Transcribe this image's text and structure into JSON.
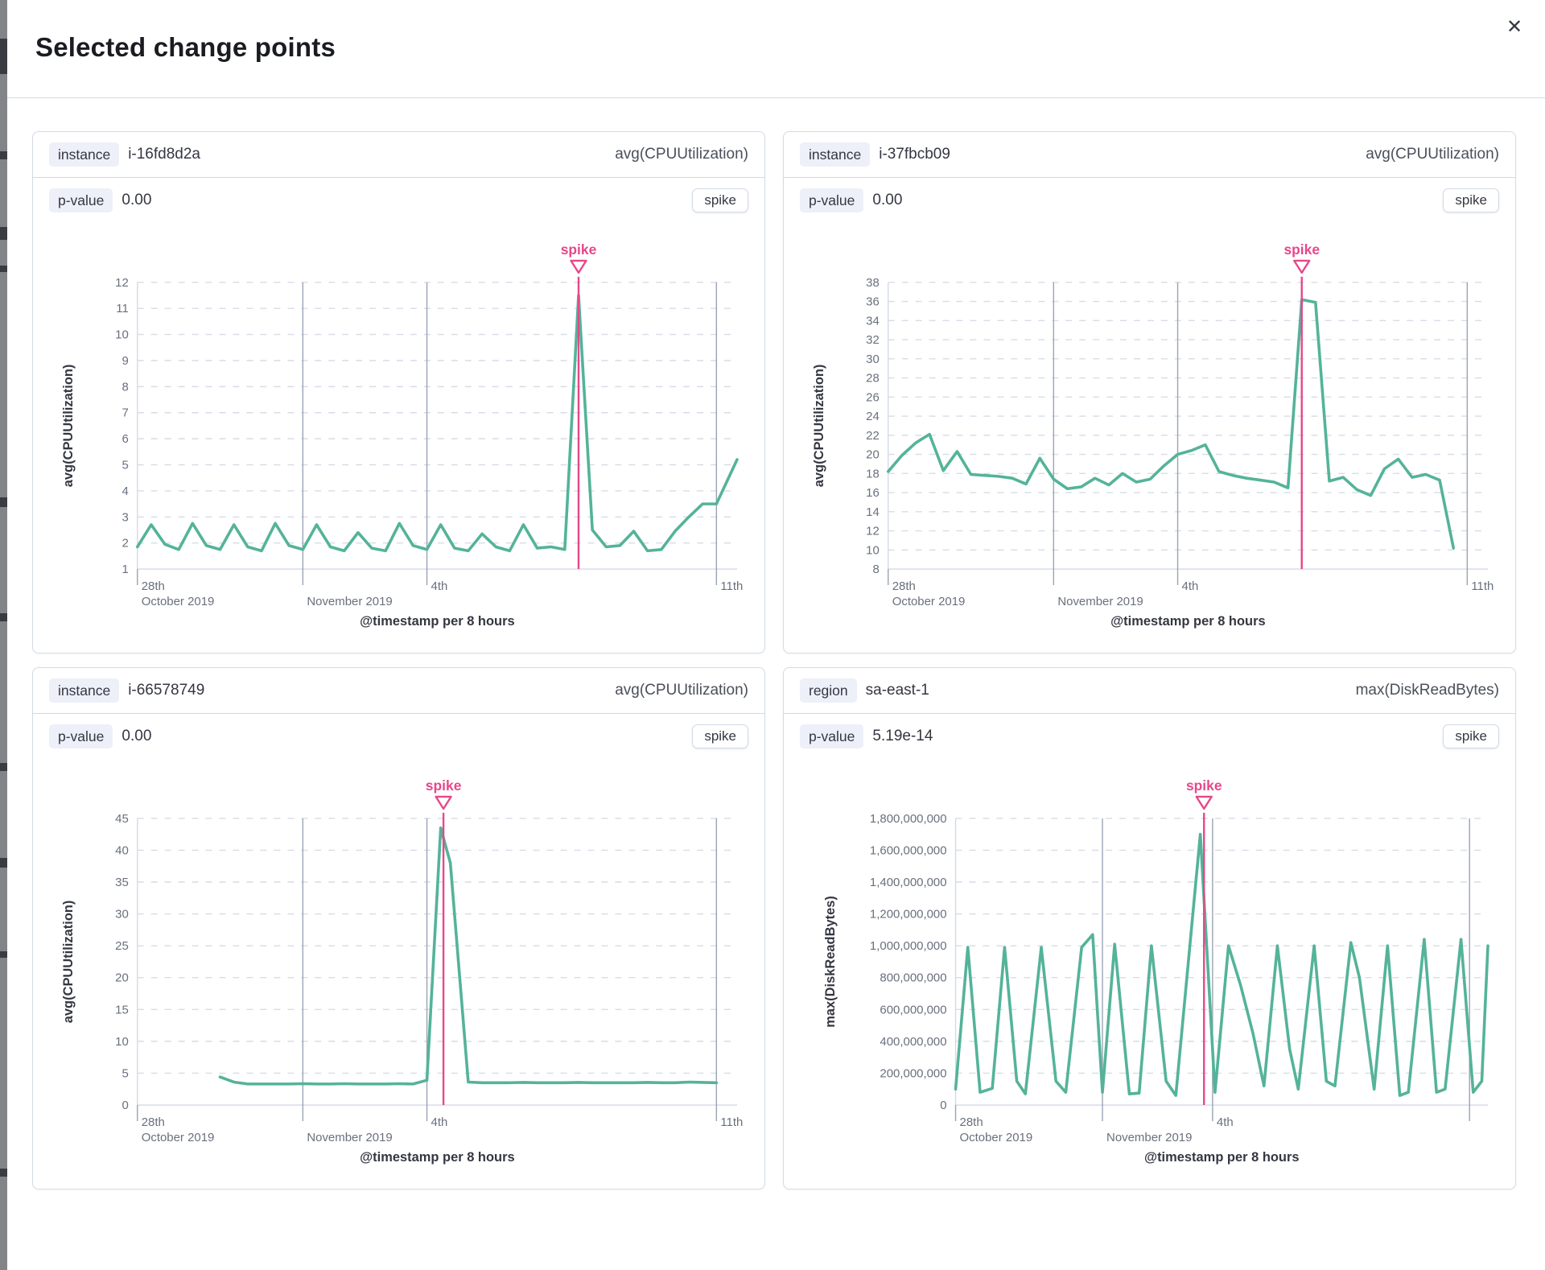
{
  "modal": {
    "title": "Selected change points",
    "close_label": "✕"
  },
  "colors": {
    "line": "#54b399",
    "spike": "#e7478b",
    "grid": "#d6dce8",
    "axis_line": "#d3dae6",
    "tick_label": "#69707d",
    "axis_title": "#343741",
    "vline": "#9aa3b5"
  },
  "panels": [
    {
      "key_label": "instance",
      "key_value": "i-16fd8d2a",
      "metric": "avg(CPUUtilization)",
      "p_label": "p-value",
      "p_value": "0.00",
      "type_badge": "spike",
      "chart": {
        "type": "line",
        "annotation": "spike",
        "spike_x": 32,
        "x_domain": [
          0,
          43.5
        ],
        "ylim": [
          1,
          12
        ],
        "ytick_values": [
          1,
          2,
          3,
          4,
          5,
          6,
          7,
          8,
          9,
          10,
          11,
          12
        ],
        "ytick_labels": [
          "1",
          "2",
          "3",
          "4",
          "5",
          "6",
          "7",
          "8",
          "9",
          "10",
          "11",
          "12"
        ],
        "ylabel": "avg(CPUUtilization)",
        "xlabel": "@timestamp per 8 hours",
        "xticks": [
          {
            "pos": 0,
            "line1": "28th",
            "line2": "October 2019"
          },
          {
            "pos": 12,
            "line1": "",
            "line2": "November 2019"
          },
          {
            "pos": 21,
            "line1": "4th",
            "line2": ""
          },
          {
            "pos": 42,
            "line1": "11th",
            "line2": ""
          }
        ],
        "points": [
          [
            0,
            1.85
          ],
          [
            1,
            2.7
          ],
          [
            2,
            1.95
          ],
          [
            3,
            1.75
          ],
          [
            4,
            2.75
          ],
          [
            5,
            1.9
          ],
          [
            6,
            1.75
          ],
          [
            7,
            2.7
          ],
          [
            8,
            1.85
          ],
          [
            9,
            1.7
          ],
          [
            10,
            2.75
          ],
          [
            11,
            1.9
          ],
          [
            12,
            1.75
          ],
          [
            13,
            2.7
          ],
          [
            14,
            1.85
          ],
          [
            15,
            1.7
          ],
          [
            16,
            2.4
          ],
          [
            17,
            1.8
          ],
          [
            18,
            1.7
          ],
          [
            19,
            2.75
          ],
          [
            20,
            1.9
          ],
          [
            21,
            1.75
          ],
          [
            22,
            2.7
          ],
          [
            23,
            1.8
          ],
          [
            24,
            1.7
          ],
          [
            25,
            2.35
          ],
          [
            26,
            1.85
          ],
          [
            27,
            1.7
          ],
          [
            28,
            2.7
          ],
          [
            29,
            1.8
          ],
          [
            30,
            1.85
          ],
          [
            31,
            1.75
          ],
          [
            32,
            11.5
          ],
          [
            33,
            2.5
          ],
          [
            34,
            1.85
          ],
          [
            35,
            1.9
          ],
          [
            36,
            2.45
          ],
          [
            37,
            1.7
          ],
          [
            38,
            1.75
          ],
          [
            39,
            2.45
          ],
          [
            40,
            3.0
          ],
          [
            41,
            3.5
          ],
          [
            42,
            3.5
          ],
          [
            43.5,
            5.2
          ]
        ]
      }
    },
    {
      "key_label": "instance",
      "key_value": "i-37fbcb09",
      "metric": "avg(CPUUtilization)",
      "p_label": "p-value",
      "p_value": "0.00",
      "type_badge": "spike",
      "chart": {
        "type": "line",
        "annotation": "spike",
        "spike_x": 30,
        "x_domain": [
          0,
          43.5
        ],
        "ylim": [
          8,
          38
        ],
        "ytick_values": [
          8,
          10,
          12,
          14,
          16,
          18,
          20,
          22,
          24,
          26,
          28,
          30,
          32,
          34,
          36,
          38
        ],
        "ytick_labels": [
          "8",
          "10",
          "12",
          "14",
          "16",
          "18",
          "20",
          "22",
          "24",
          "26",
          "28",
          "30",
          "32",
          "34",
          "36",
          "38"
        ],
        "ylabel": "avg(CPUUtilization)",
        "xlabel": "@timestamp per 8 hours",
        "xticks": [
          {
            "pos": 0,
            "line1": "28th",
            "line2": "October 2019"
          },
          {
            "pos": 12,
            "line1": "",
            "line2": "November 2019"
          },
          {
            "pos": 21,
            "line1": "4th",
            "line2": ""
          },
          {
            "pos": 42,
            "line1": "11th",
            "line2": ""
          }
        ],
        "points": [
          [
            0,
            18.2
          ],
          [
            1,
            19.9
          ],
          [
            2,
            21.2
          ],
          [
            3,
            22.1
          ],
          [
            4,
            18.3
          ],
          [
            5,
            20.3
          ],
          [
            6,
            17.9
          ],
          [
            7,
            17.8
          ],
          [
            8,
            17.7
          ],
          [
            9,
            17.5
          ],
          [
            10,
            16.9
          ],
          [
            11,
            19.6
          ],
          [
            12,
            17.4
          ],
          [
            13,
            16.4
          ],
          [
            14,
            16.6
          ],
          [
            15,
            17.5
          ],
          [
            16,
            16.8
          ],
          [
            17,
            18.0
          ],
          [
            18,
            17.1
          ],
          [
            19,
            17.4
          ],
          [
            20,
            18.8
          ],
          [
            21,
            20.0
          ],
          [
            22,
            20.4
          ],
          [
            23,
            21.0
          ],
          [
            24,
            18.2
          ],
          [
            25,
            17.8
          ],
          [
            26,
            17.5
          ],
          [
            27,
            17.3
          ],
          [
            28,
            17.1
          ],
          [
            29,
            16.5
          ],
          [
            30,
            36.2
          ],
          [
            31,
            35.9
          ],
          [
            32,
            17.2
          ],
          [
            33,
            17.6
          ],
          [
            34,
            16.3
          ],
          [
            35,
            15.7
          ],
          [
            36,
            18.5
          ],
          [
            37,
            19.5
          ],
          [
            38,
            17.6
          ],
          [
            39,
            17.9
          ],
          [
            40,
            17.3
          ],
          [
            41,
            10.2
          ]
        ]
      }
    },
    {
      "key_label": "instance",
      "key_value": "i-66578749",
      "metric": "avg(CPUUtilization)",
      "p_label": "p-value",
      "p_value": "0.00",
      "type_badge": "spike",
      "chart": {
        "type": "line",
        "annotation": "spike",
        "spike_x": 22.2,
        "x_domain": [
          0,
          43.5
        ],
        "ylim": [
          0,
          45
        ],
        "ytick_values": [
          0,
          5,
          10,
          15,
          20,
          25,
          30,
          35,
          40,
          45
        ],
        "ytick_labels": [
          "0",
          "5",
          "10",
          "15",
          "20",
          "25",
          "30",
          "35",
          "40",
          "45"
        ],
        "ylabel": "avg(CPUUtilization)",
        "xlabel": "@timestamp per 8 hours",
        "xticks": [
          {
            "pos": 0,
            "line1": "28th",
            "line2": "October 2019"
          },
          {
            "pos": 12,
            "line1": "",
            "line2": "November 2019"
          },
          {
            "pos": 21,
            "line1": "4th",
            "line2": ""
          },
          {
            "pos": 42,
            "line1": "11th",
            "line2": ""
          }
        ],
        "points": [
          [
            6,
            4.4
          ],
          [
            7,
            3.6
          ],
          [
            8,
            3.3
          ],
          [
            9,
            3.3
          ],
          [
            10,
            3.3
          ],
          [
            11,
            3.3
          ],
          [
            12,
            3.35
          ],
          [
            13,
            3.3
          ],
          [
            14,
            3.3
          ],
          [
            15,
            3.35
          ],
          [
            16,
            3.3
          ],
          [
            17,
            3.3
          ],
          [
            18,
            3.3
          ],
          [
            19,
            3.35
          ],
          [
            20,
            3.3
          ],
          [
            21,
            3.9
          ],
          [
            22,
            43.5
          ],
          [
            22.7,
            38.0
          ],
          [
            24,
            3.6
          ],
          [
            25,
            3.5
          ],
          [
            26,
            3.5
          ],
          [
            27,
            3.5
          ],
          [
            28,
            3.55
          ],
          [
            29,
            3.5
          ],
          [
            30,
            3.5
          ],
          [
            31,
            3.5
          ],
          [
            32,
            3.55
          ],
          [
            33,
            3.5
          ],
          [
            34,
            3.5
          ],
          [
            35,
            3.5
          ],
          [
            36,
            3.5
          ],
          [
            37,
            3.55
          ],
          [
            38,
            3.5
          ],
          [
            39,
            3.5
          ],
          [
            40,
            3.6
          ],
          [
            41,
            3.55
          ],
          [
            42,
            3.5
          ]
        ]
      }
    },
    {
      "key_label": "region",
      "key_value": "sa-east-1",
      "metric": "max(DiskReadBytes)",
      "p_label": "p-value",
      "p_value": "5.19e-14",
      "type_badge": "spike",
      "chart": {
        "type": "line",
        "annotation": "spike",
        "spike_x": 20.3,
        "x_domain": [
          0,
          43.5
        ],
        "ylim": [
          0,
          1800000000.0
        ],
        "ytick_values": [
          0,
          200000000.0,
          400000000.0,
          600000000.0,
          800000000.0,
          1000000000.0,
          1200000000.0,
          1400000000.0,
          1600000000.0,
          1800000000.0
        ],
        "ytick_labels": [
          "0",
          "200,000,000",
          "400,000,000",
          "600,000,000",
          "800,000,000",
          "1,000,000,000",
          "1,200,000,000",
          "1,400,000,000",
          "1,600,000,000",
          "1,800,000,000"
        ],
        "ylabel": "max(DiskReadBytes)",
        "xlabel": "@timestamp per 8 hours",
        "xticks": [
          {
            "pos": 0,
            "line1": "28th",
            "line2": "October 2019"
          },
          {
            "pos": 12,
            "line1": "",
            "line2": "November 2019"
          },
          {
            "pos": 21,
            "line1": "4th",
            "line2": ""
          },
          {
            "pos": 42,
            "line1": "",
            "line2": ""
          }
        ],
        "points": [
          [
            0,
            100000000.0
          ],
          [
            1,
            990000000.0
          ],
          [
            2,
            80000000.0
          ],
          [
            3,
            105000000.0
          ],
          [
            4,
            990000000.0
          ],
          [
            5,
            150000000.0
          ],
          [
            5.7,
            70000000.0
          ],
          [
            7,
            990000000.0
          ],
          [
            8.2,
            150000000.0
          ],
          [
            9,
            80000000.0
          ],
          [
            10.3,
            990000000.0
          ],
          [
            11.2,
            1070000000.0
          ],
          [
            12,
            80000000.0
          ],
          [
            13,
            1010000000.0
          ],
          [
            14.2,
            70000000.0
          ],
          [
            15,
            75000000.0
          ],
          [
            16,
            1000000000.0
          ],
          [
            17.2,
            150000000.0
          ],
          [
            18,
            60000000.0
          ],
          [
            20,
            1700000000.0
          ],
          [
            21.2,
            80000000.0
          ],
          [
            22.3,
            1000000000.0
          ],
          [
            23.3,
            750000000.0
          ],
          [
            24.3,
            450000000.0
          ],
          [
            25.2,
            120000000.0
          ],
          [
            26.3,
            1000000000.0
          ],
          [
            27.3,
            350000000.0
          ],
          [
            28,
            100000000.0
          ],
          [
            29.3,
            1000000000.0
          ],
          [
            30.3,
            150000000.0
          ],
          [
            31,
            120000000.0
          ],
          [
            32.3,
            1020000000.0
          ],
          [
            33,
            800000000.0
          ],
          [
            34.2,
            100000000.0
          ],
          [
            35.3,
            1000000000.0
          ],
          [
            36.3,
            60000000.0
          ],
          [
            37,
            80000000.0
          ],
          [
            38.3,
            1040000000.0
          ],
          [
            39.3,
            80000000.0
          ],
          [
            40,
            100000000.0
          ],
          [
            41.3,
            1040000000.0
          ],
          [
            42.3,
            80000000.0
          ],
          [
            43,
            150000000.0
          ],
          [
            43.5,
            1000000000.0
          ]
        ]
      }
    }
  ]
}
